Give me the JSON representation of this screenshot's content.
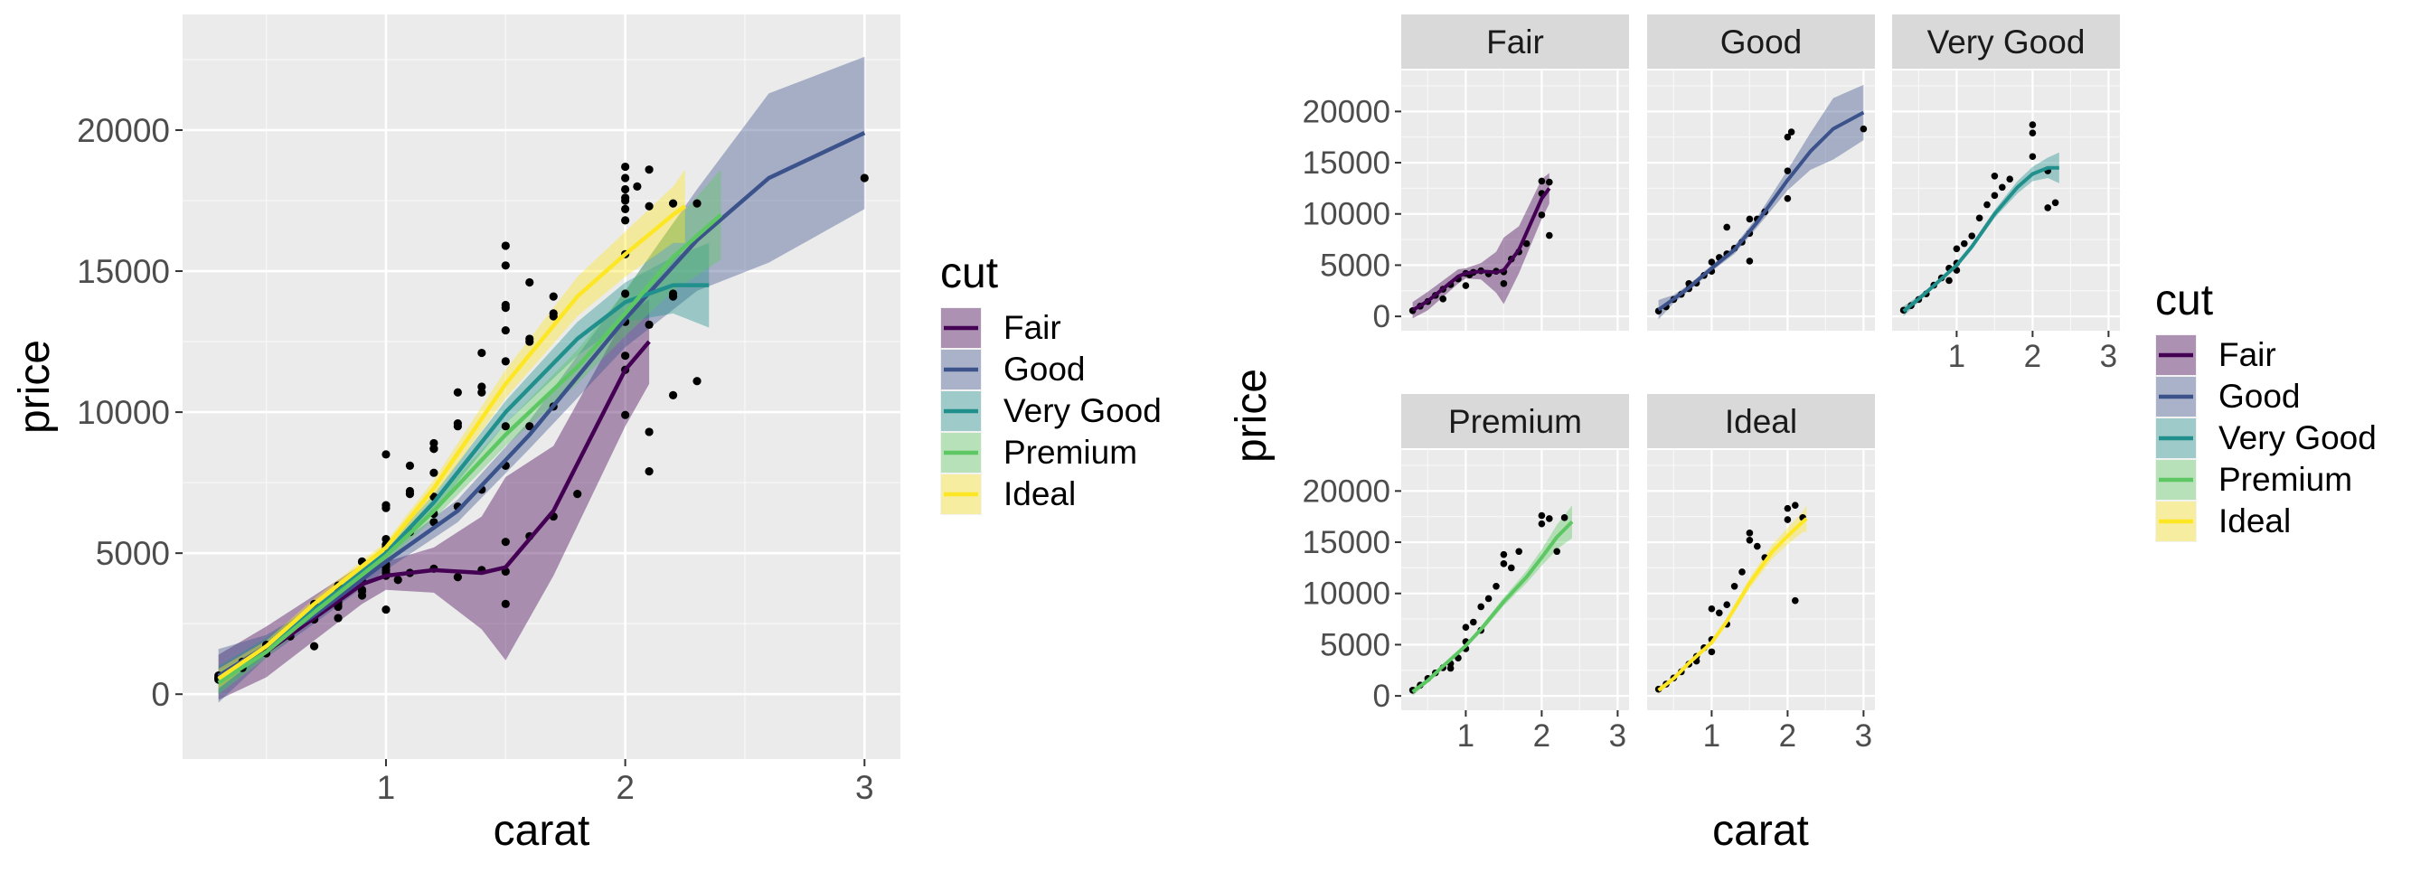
{
  "colors": {
    "Fair": "#440154",
    "Good": "#3B528B",
    "Very Good": "#21908C",
    "Premium": "#5DC863",
    "Ideal": "#FDE725",
    "panel_bg": "#EBEBEB",
    "strip_bg": "#D9D9D9",
    "grid_major": "#FFFFFF",
    "point": "#000000"
  },
  "chart_data": [
    {
      "type": "scatter",
      "title": "",
      "xlabel": "carat",
      "ylabel": "price",
      "xlim": [
        0.15,
        3.15
      ],
      "ylim": [
        -2300,
        24100
      ],
      "x_ticks": [
        1,
        2,
        3
      ],
      "y_ticks": [
        0,
        5000,
        10000,
        15000,
        20000
      ],
      "grid": true,
      "legend": {
        "title": "cut",
        "position": "right",
        "entries": [
          "Fair",
          "Good",
          "Very Good",
          "Premium",
          "Ideal"
        ]
      },
      "series": [
        {
          "name": "Fair",
          "x": [
            0.3,
            0.5,
            0.7,
            0.9,
            1.0,
            1.2,
            1.4,
            1.5,
            1.7,
            2.0,
            2.1
          ],
          "y": [
            600,
            1500,
            2700,
            3900,
            4200,
            4400,
            4300,
            4500,
            6500,
            11500,
            12500
          ],
          "band": [
            [
              -200,
              1400
            ],
            [
              600,
              2400
            ],
            [
              1900,
              3500
            ],
            [
              3200,
              4600
            ],
            [
              3700,
              4700
            ],
            [
              3600,
              5200
            ],
            [
              2300,
              6300
            ],
            [
              1200,
              7700
            ],
            [
              4200,
              8800
            ],
            [
              9500,
              13400
            ],
            [
              11000,
              14000
            ]
          ]
        },
        {
          "name": "Good",
          "x": [
            0.3,
            0.5,
            0.7,
            1.0,
            1.3,
            1.6,
            2.0,
            2.3,
            2.6,
            3.0
          ],
          "y": [
            650,
            1700,
            2800,
            4700,
            6500,
            9200,
            13300,
            16100,
            18300,
            19900
          ],
          "band": [
            [
              -300,
              1600
            ],
            [
              1300,
              2100
            ],
            [
              2500,
              3100
            ],
            [
              4400,
              5000
            ],
            [
              6100,
              6900
            ],
            [
              8700,
              9700
            ],
            [
              12300,
              14300
            ],
            [
              14300,
              17900
            ],
            [
              15300,
              21300
            ],
            [
              17200,
              22600
            ]
          ]
        },
        {
          "name": "Very Good",
          "x": [
            0.3,
            0.5,
            0.7,
            1.0,
            1.2,
            1.5,
            1.8,
            2.0,
            2.2,
            2.35
          ],
          "y": [
            500,
            1700,
            3000,
            5000,
            6800,
            10000,
            12600,
            13900,
            14500,
            14500
          ],
          "band": [
            [
              0,
              1000
            ],
            [
              1400,
              2000
            ],
            [
              2800,
              3200
            ],
            [
              4800,
              5200
            ],
            [
              6500,
              7100
            ],
            [
              9600,
              10400
            ],
            [
              12000,
              13200
            ],
            [
              13200,
              14600
            ],
            [
              13500,
              15500
            ],
            [
              13000,
              16000
            ]
          ]
        },
        {
          "name": "Premium",
          "x": [
            0.3,
            0.5,
            0.7,
            1.0,
            1.2,
            1.5,
            1.8,
            2.0,
            2.2,
            2.4
          ],
          "y": [
            400,
            1500,
            2900,
            4900,
            6500,
            9200,
            11600,
            13500,
            15500,
            17000
          ],
          "band": [
            [
              0,
              800
            ],
            [
              1300,
              1700
            ],
            [
              2700,
              3100
            ],
            [
              4700,
              5100
            ],
            [
              6200,
              6800
            ],
            [
              8800,
              9600
            ],
            [
              11000,
              12200
            ],
            [
              12700,
              14300
            ],
            [
              14300,
              16700
            ],
            [
              15400,
              18600
            ]
          ]
        },
        {
          "name": "Ideal",
          "x": [
            0.3,
            0.5,
            0.7,
            1.0,
            1.2,
            1.5,
            1.8,
            2.0,
            2.2,
            2.25
          ],
          "y": [
            550,
            1700,
            3200,
            5200,
            7300,
            11000,
            14100,
            15600,
            17000,
            17300
          ],
          "band": [
            [
              200,
              900
            ],
            [
              1500,
              1900
            ],
            [
              3000,
              3400
            ],
            [
              5000,
              5400
            ],
            [
              7000,
              7600
            ],
            [
              10500,
              11500
            ],
            [
              13400,
              14800
            ],
            [
              14800,
              16400
            ],
            [
              16000,
              18000
            ],
            [
              16000,
              18600
            ]
          ]
        }
      ],
      "points_by_cut": {
        "Fair": [
          [
            0.3,
            560
          ],
          [
            0.4,
            1000
          ],
          [
            0.5,
            1450
          ],
          [
            0.6,
            2050
          ],
          [
            0.7,
            2650
          ],
          [
            0.8,
            3100
          ],
          [
            0.9,
            3650
          ],
          [
            1.0,
            4200
          ],
          [
            1.05,
            4050
          ],
          [
            1.1,
            4300
          ],
          [
            1.2,
            4450
          ],
          [
            1.3,
            4150
          ],
          [
            1.4,
            4400
          ],
          [
            1.5,
            4350
          ],
          [
            1.5,
            3200
          ],
          [
            1.6,
            5600
          ],
          [
            1.7,
            6300
          ],
          [
            1.8,
            7100
          ],
          [
            2.0,
            9900
          ],
          [
            2.0,
            12000
          ],
          [
            2.0,
            13200
          ],
          [
            2.1,
            13100
          ],
          [
            2.1,
            7900
          ],
          [
            1.0,
            3000
          ],
          [
            0.7,
            1700
          ]
        ],
        "Good": [
          [
            0.3,
            520
          ],
          [
            0.4,
            930
          ],
          [
            0.5,
            1650
          ],
          [
            0.6,
            2150
          ],
          [
            0.7,
            2700
          ],
          [
            0.8,
            3250
          ],
          [
            0.9,
            4000
          ],
          [
            1.0,
            5300
          ],
          [
            1.1,
            5750
          ],
          [
            1.2,
            6100
          ],
          [
            1.3,
            6650
          ],
          [
            1.4,
            7250
          ],
          [
            1.5,
            8100
          ],
          [
            1.5,
            9500
          ],
          [
            1.5,
            5400
          ],
          [
            1.6,
            9500
          ],
          [
            1.7,
            10200
          ],
          [
            2.0,
            14200
          ],
          [
            2.0,
            17500
          ],
          [
            2.05,
            18000
          ],
          [
            2.0,
            11500
          ],
          [
            3.0,
            18300
          ],
          [
            1.0,
            4400
          ],
          [
            0.7,
            3200
          ],
          [
            1.2,
            8700
          ]
        ],
        "Very Good": [
          [
            0.3,
            600
          ],
          [
            0.4,
            1050
          ],
          [
            0.5,
            1650
          ],
          [
            0.6,
            2200
          ],
          [
            0.7,
            3050
          ],
          [
            0.8,
            3750
          ],
          [
            0.9,
            4700
          ],
          [
            1.0,
            5200
          ],
          [
            1.0,
            6600
          ],
          [
            1.1,
            7100
          ],
          [
            1.2,
            7850
          ],
          [
            1.3,
            9600
          ],
          [
            1.4,
            10900
          ],
          [
            1.5,
            11800
          ],
          [
            1.5,
            13700
          ],
          [
            1.6,
            12600
          ],
          [
            1.7,
            13400
          ],
          [
            2.0,
            17900
          ],
          [
            2.0,
            18700
          ],
          [
            2.0,
            15600
          ],
          [
            2.2,
            14200
          ],
          [
            2.3,
            11100
          ],
          [
            2.2,
            10600
          ],
          [
            1.0,
            4500
          ],
          [
            0.9,
            3500
          ]
        ],
        "Premium": [
          [
            0.3,
            560
          ],
          [
            0.4,
            1050
          ],
          [
            0.5,
            1700
          ],
          [
            0.6,
            2250
          ],
          [
            0.7,
            2750
          ],
          [
            0.8,
            3150
          ],
          [
            0.9,
            3700
          ],
          [
            1.0,
            5300
          ],
          [
            1.0,
            6700
          ],
          [
            1.1,
            7200
          ],
          [
            1.2,
            8700
          ],
          [
            1.3,
            9500
          ],
          [
            1.4,
            10700
          ],
          [
            1.5,
            12900
          ],
          [
            1.5,
            13800
          ],
          [
            1.6,
            12500
          ],
          [
            1.7,
            14100
          ],
          [
            2.0,
            17600
          ],
          [
            2.0,
            16800
          ],
          [
            2.1,
            17300
          ],
          [
            2.2,
            14100
          ],
          [
            2.3,
            17400
          ],
          [
            1.0,
            4600
          ],
          [
            0.8,
            2700
          ],
          [
            1.2,
            6400
          ]
        ],
        "Ideal": [
          [
            0.3,
            660
          ],
          [
            0.4,
            1150
          ],
          [
            0.5,
            1750
          ],
          [
            0.6,
            2350
          ],
          [
            0.7,
            3100
          ],
          [
            0.8,
            3850
          ],
          [
            0.9,
            4700
          ],
          [
            1.0,
            5500
          ],
          [
            1.0,
            8500
          ],
          [
            1.1,
            8100
          ],
          [
            1.2,
            8900
          ],
          [
            1.3,
            10700
          ],
          [
            1.4,
            12100
          ],
          [
            1.5,
            15200
          ],
          [
            1.5,
            15900
          ],
          [
            1.6,
            14600
          ],
          [
            1.7,
            13500
          ],
          [
            2.0,
            17200
          ],
          [
            2.0,
            18300
          ],
          [
            2.1,
            18600
          ],
          [
            2.2,
            17400
          ],
          [
            2.1,
            9300
          ],
          [
            1.0,
            4300
          ],
          [
            0.8,
            3400
          ],
          [
            1.2,
            7000
          ]
        ]
      }
    },
    {
      "type": "scatter",
      "title": "",
      "xlabel": "carat",
      "ylabel": "price",
      "facets": [
        "Fair",
        "Good",
        "Very Good",
        "Premium",
        "Ideal"
      ],
      "xlim": [
        0.15,
        3.15
      ],
      "ylim": [
        -1400,
        24000
      ],
      "x_ticks": [
        1,
        2,
        3
      ],
      "y_ticks": [
        0,
        5000,
        10000,
        15000,
        20000
      ],
      "grid": true,
      "legend": {
        "title": "cut",
        "position": "right",
        "entries": [
          "Fair",
          "Good",
          "Very Good",
          "Premium",
          "Ideal"
        ]
      }
    }
  ]
}
